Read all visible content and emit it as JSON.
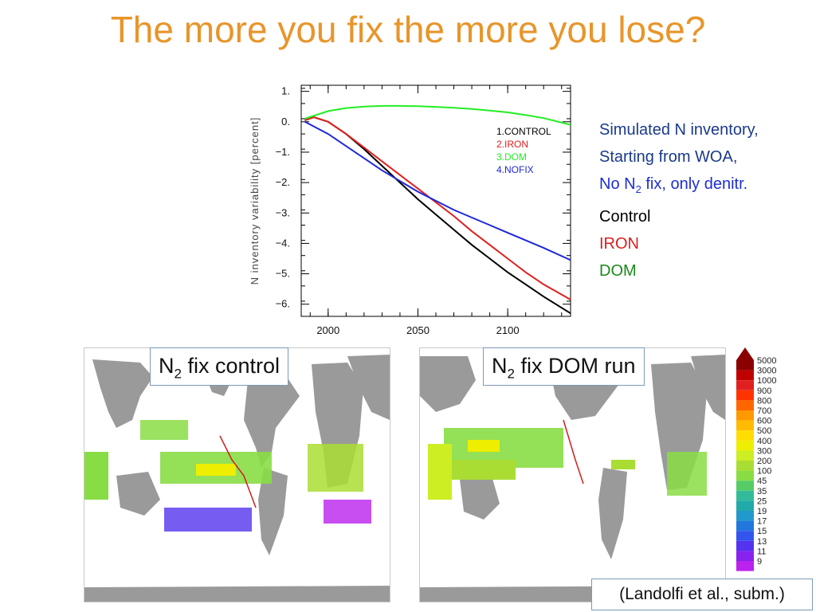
{
  "slide": {
    "title": "The more you fix the more you lose?",
    "citation": "(Landolfi et al., subm.)"
  },
  "notes": {
    "line1": "Simulated N inventory,",
    "line2": "Starting from WOA,",
    "line3_pre": "No N",
    "line3_sub": "2",
    "line3_post": " fix, only denitr.",
    "line4": "Control",
    "line5": "IRON",
    "line6": "DOM",
    "colors": {
      "dark_blue": "#1a3a8a",
      "blue": "#1e2fd0",
      "black": "#000000",
      "red": "#d81e1e",
      "green": "#1a8a1a"
    }
  },
  "maps": {
    "left_label_pre": "N",
    "left_label_sub": "2",
    "left_label_post": " fix control",
    "right_label_pre": "N",
    "right_label_sub": "2",
    "right_label_post": " fix DOM run"
  },
  "colorbar": {
    "labels": [
      "5000",
      "3000",
      "1000",
      "900",
      "800",
      "700",
      "600",
      "500",
      "400",
      "300",
      "200",
      "100",
      "45",
      "35",
      "25",
      "19",
      "17",
      "15",
      "13",
      "11",
      "9"
    ],
    "colors": [
      "#8b0000",
      "#c00000",
      "#e02020",
      "#ff3300",
      "#ff6600",
      "#ff9900",
      "#ffbb00",
      "#ffdd00",
      "#eeee00",
      "#ccee22",
      "#aadd33",
      "#88dd44",
      "#55cc66",
      "#33bb99",
      "#22aaaa",
      "#2299cc",
      "#2277dd",
      "#3355ee",
      "#5533ee",
      "#8822ee",
      "#bb22ee"
    ]
  },
  "chart_data": {
    "type": "line",
    "title": "",
    "xlabel": "",
    "ylabel": "N inventory variability [percent]",
    "xlim": [
      1985,
      2135
    ],
    "ylim": [
      -6.4,
      1.2
    ],
    "xticks": [
      2000,
      2050,
      2100
    ],
    "yticks": [
      1,
      0,
      -1,
      -2,
      -3,
      -4,
      -5,
      -6
    ],
    "ytick_labels": [
      "1.",
      "0.",
      "−1.",
      "−2.",
      "−3.",
      "−4.",
      "−5.",
      "−6."
    ],
    "legend_position": "top-right",
    "series": [
      {
        "name": "1.CONTROL",
        "color": "#000000",
        "x": [
          1987,
          1992,
          2000,
          2010,
          2020,
          2030,
          2040,
          2050,
          2060,
          2070,
          2080,
          2090,
          2100,
          2110,
          2120,
          2135
        ],
        "y": [
          0.05,
          0.15,
          0.0,
          -0.4,
          -0.9,
          -1.45,
          -2.0,
          -2.55,
          -3.05,
          -3.55,
          -4.05,
          -4.5,
          -4.95,
          -5.35,
          -5.75,
          -6.3
        ]
      },
      {
        "name": "2.IRON",
        "color": "#e02020",
        "x": [
          1987,
          1992,
          2000,
          2010,
          2020,
          2030,
          2040,
          2050,
          2060,
          2070,
          2080,
          2090,
          2100,
          2110,
          2120,
          2135
        ],
        "y": [
          0.05,
          0.15,
          0.0,
          -0.4,
          -0.85,
          -1.3,
          -1.75,
          -2.2,
          -2.65,
          -3.1,
          -3.6,
          -4.05,
          -4.5,
          -4.95,
          -5.35,
          -5.85
        ]
      },
      {
        "name": "3.DOM",
        "color": "#22ee22",
        "x": [
          1987,
          2000,
          2010,
          2020,
          2030,
          2040,
          2050,
          2060,
          2070,
          2080,
          2090,
          2100,
          2110,
          2120,
          2135
        ],
        "y": [
          0.1,
          0.35,
          0.45,
          0.5,
          0.52,
          0.52,
          0.51,
          0.49,
          0.46,
          0.42,
          0.37,
          0.31,
          0.22,
          0.12,
          -0.1
        ]
      },
      {
        "name": "4.NOFIX",
        "color": "#1e28d8",
        "x": [
          1987,
          2000,
          2010,
          2020,
          2030,
          2040,
          2050,
          2060,
          2070,
          2080,
          2090,
          2100,
          2110,
          2120,
          2135
        ],
        "y": [
          0.0,
          -0.4,
          -0.8,
          -1.2,
          -1.6,
          -1.95,
          -2.3,
          -2.6,
          -2.9,
          -3.15,
          -3.4,
          -3.65,
          -3.9,
          -4.15,
          -4.55
        ]
      }
    ]
  }
}
